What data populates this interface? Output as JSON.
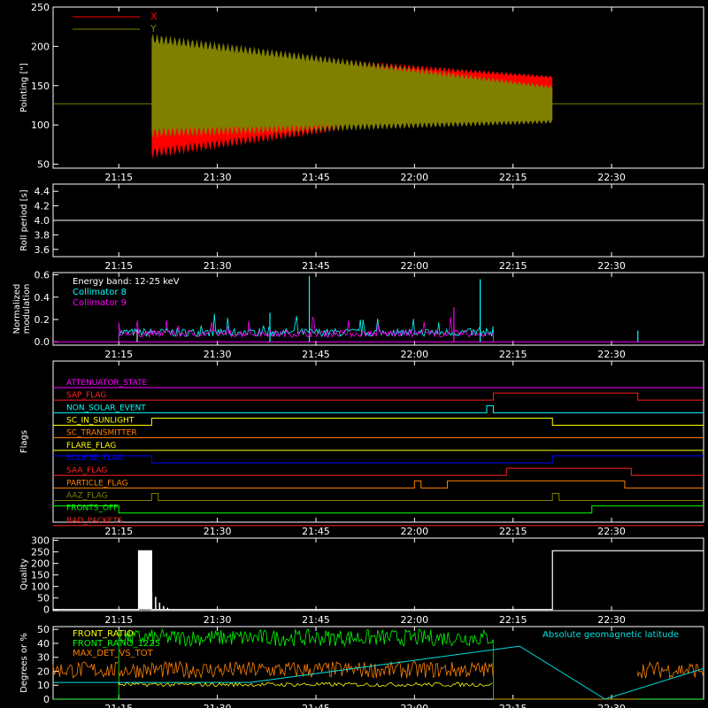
{
  "time_ticks": [
    "21:15",
    "21:30",
    "21:45",
    "22:00",
    "22:15",
    "22:30"
  ],
  "chart_data": [
    {
      "type": "line",
      "ylabel": "Pointing [\"]",
      "ylim": [
        45,
        250
      ],
      "yticks": [
        50,
        100,
        150,
        200,
        250
      ],
      "xlim": [
        "21:05",
        "22:44"
      ],
      "grid": false,
      "legend": "top-left",
      "series": [
        {
          "name": "X",
          "color": "#ff0000",
          "t_start": "21:20",
          "t_end": "22:21",
          "center": [
            130,
            147
          ],
          "amp_start": 66,
          "amp_end": 14
        },
        {
          "name": "Y",
          "color": "#808000",
          "t_start": "21:20",
          "t_end": "22:21",
          "center": [
            150,
            126
          ],
          "amp_start": 60,
          "amp_end": 22
        }
      ],
      "reference_line": {
        "value": 127,
        "color": "#808000"
      }
    },
    {
      "type": "line",
      "ylabel": "Roll period [s]",
      "ylim": [
        3.5,
        4.5
      ],
      "yticks": [
        "3.6",
        "3.8",
        "4.0",
        "4.2",
        "4.4"
      ],
      "series": [
        {
          "color": "#ffffff",
          "constant": 4.0
        }
      ]
    },
    {
      "type": "line",
      "ylabel": "Normalized modulation",
      "ylim": [
        -0.03,
        0.62
      ],
      "yticks": [
        "0.0",
        "0.2",
        "0.4",
        "0.6"
      ],
      "annotations": [
        "Energy band: 12-25 keV"
      ],
      "series": [
        {
          "name": "Collimator 8",
          "color": "#00ffff",
          "t_start": "21:15",
          "t_end": "22:12",
          "typical": 0.08,
          "spikes": [
            {
              "t": "21:44",
              "v": 0.59
            },
            {
              "t": "22:10",
              "v": 0.56
            },
            {
              "t": "21:38",
              "v": 0.26
            },
            {
              "t": "22:34",
              "v": 0.1
            }
          ]
        },
        {
          "name": "Collimator 9",
          "color": "#ff00ff",
          "t_start": "21:15",
          "t_end": "22:12",
          "typical": 0.07,
          "spikes": [
            {
              "t": "22:06",
              "v": 0.31
            }
          ]
        }
      ]
    },
    {
      "type": "line",
      "ylabel": "Flags",
      "series": [
        {
          "name": "ATTENUATOR_STATE",
          "color": "#ff00ff",
          "segments": [
            [
              "21:05",
              0
            ]
          ]
        },
        {
          "name": "SAP_FLAG",
          "color": "#ff2020",
          "segments": [
            [
              "21:05",
              0
            ],
            [
              "22:12",
              1
            ],
            [
              "22:34",
              0
            ]
          ]
        },
        {
          "name": "NON_SOLAR_EVENT",
          "color": "#00ffff",
          "segments": [
            [
              "21:05",
              0
            ],
            [
              "22:11",
              1
            ],
            [
              "22:12",
              0
            ]
          ]
        },
        {
          "name": "SC_IN_SUNLIGHT",
          "color": "#ffff00",
          "segments": [
            [
              "21:05",
              0
            ],
            [
              "21:20",
              1
            ],
            [
              "22:21",
              0
            ]
          ]
        },
        {
          "name": "SC_TRANSMITTER",
          "color": "#ff8000",
          "segments": [
            [
              "21:05",
              0
            ]
          ]
        },
        {
          "name": "FLARE_FLAG",
          "color": "#ffff00",
          "segments": [
            [
              "21:05",
              0
            ]
          ]
        },
        {
          "name": "ECLIPSE_FLAG",
          "color": "#0000ff",
          "segments": [
            [
              "21:05",
              1
            ],
            [
              "21:20",
              0
            ],
            [
              "22:21",
              1
            ]
          ]
        },
        {
          "name": "SAA_FLAG",
          "color": "#ff2020",
          "segments": [
            [
              "21:05",
              0
            ],
            [
              "22:14",
              1
            ],
            [
              "22:33",
              0
            ]
          ]
        },
        {
          "name": "PARTICLE_FLAG",
          "color": "#ff8000",
          "segments": [
            [
              "21:05",
              0
            ],
            [
              "22:00",
              1
            ],
            [
              "22:01",
              0
            ],
            [
              "22:05",
              1
            ],
            [
              "22:32",
              0
            ]
          ]
        },
        {
          "name": "AAZ_FLAG",
          "color": "#808000",
          "segments": [
            [
              "21:05",
              0
            ],
            [
              "21:20",
              1
            ],
            [
              "21:21",
              0
            ],
            [
              "22:21",
              1
            ],
            [
              "22:22",
              0
            ]
          ]
        },
        {
          "name": "FRONTS_OFF",
          "color": "#00ff00",
          "segments": [
            [
              "21:05",
              1
            ],
            [
              "21:15",
              0
            ],
            [
              "22:27",
              1
            ]
          ]
        },
        {
          "name": "BAD_PACKETS",
          "color": "#ff2020",
          "segments": [
            [
              "21:05",
              0
            ]
          ]
        }
      ]
    },
    {
      "type": "line",
      "ylabel": "Quality",
      "ylim": [
        -5,
        310
      ],
      "yticks": [
        0,
        50,
        100,
        150,
        200,
        250,
        300
      ],
      "series": [
        {
          "color": "#ffffff",
          "segments": [
            [
              "21:05",
              0
            ],
            [
              "21:18",
              255
            ],
            [
              "21:20",
              0
            ],
            [
              "22:21",
              255
            ]
          ]
        }
      ]
    },
    {
      "type": "line",
      "ylabel": "Degrees or %",
      "ylim": [
        0,
        52
      ],
      "yticks": [
        0,
        10,
        20,
        30,
        40,
        50
      ],
      "series": [
        {
          "name": "FRONT_RATIO",
          "color": "#ffff00",
          "t_start": "21:15",
          "t_end": "22:12",
          "typical": 10
        },
        {
          "name": "FRONT_RATIO_1225",
          "color": "#00ff00",
          "t_start": "21:15",
          "t_end": "22:12",
          "typical": 42
        },
        {
          "name": "MAX_DET_VS_TOT",
          "color": "#ff8000",
          "typical": 20
        },
        {
          "name": "Absolute geomagnetic latitude",
          "color": "#00e0e0",
          "peaks": [
            [
              "21:05",
              12
            ],
            [
              "21:35",
              12
            ],
            [
              "22:16",
              38
            ],
            [
              "22:29",
              0
            ],
            [
              "22:44",
              22
            ]
          ]
        }
      ]
    }
  ]
}
